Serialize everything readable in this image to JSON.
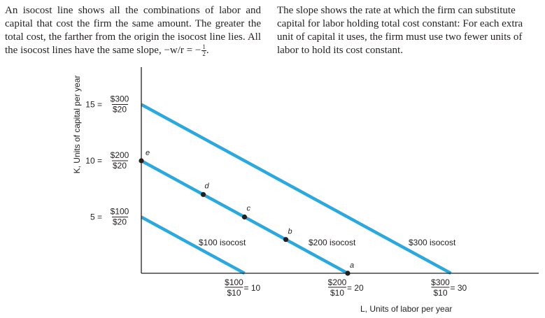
{
  "caption_left": {
    "text": "An isocost line shows all the combinations of labor and capital that cost the firm the same amount. The greater the total cost, the farther from the origin the isocost line lies. All the isocost lines have the same slope, −w/r = −",
    "slope_num": "1",
    "slope_den": "2",
    "tail": "."
  },
  "caption_right": {
    "text": "The slope shows the rate at which the firm can substitute capital for labor holding total cost constant: For each extra unit of capital it uses, the firm must use two fewer units of labor to hold its cost constant."
  },
  "axes": {
    "y_label": "K, Units of capital per year",
    "x_label": "L, Units of labor per year"
  },
  "y_ticks": [
    {
      "value": "15",
      "num": "$300",
      "den": "$20"
    },
    {
      "value": "10",
      "num": "$200",
      "den": "$20"
    },
    {
      "value": "5",
      "num": "$100",
      "den": "$20"
    }
  ],
  "x_ticks": [
    {
      "num": "$100",
      "den": "$10",
      "value": "10"
    },
    {
      "num": "$200",
      "den": "$10",
      "value": "20"
    },
    {
      "num": "$300",
      "den": "$10",
      "value": "30"
    }
  ],
  "lines": [
    {
      "label": "$100 isocost",
      "cost": 100,
      "k_intercept": 5,
      "l_intercept": 10
    },
    {
      "label": "$200 isocost",
      "cost": 200,
      "k_intercept": 10,
      "l_intercept": 20
    },
    {
      "label": "$300 isocost",
      "cost": 300,
      "k_intercept": 15,
      "l_intercept": 30
    }
  ],
  "points": [
    {
      "label": "e",
      "l": 0,
      "k": 10
    },
    {
      "label": "d",
      "l": 6,
      "k": 7
    },
    {
      "label": "c",
      "l": 10,
      "k": 5
    },
    {
      "label": "b",
      "l": 14,
      "k": 3
    },
    {
      "label": "a",
      "l": 20,
      "k": 0
    }
  ],
  "colors": {
    "line": "#2aa8e0",
    "text": "#231f20",
    "point": "#231f20"
  }
}
